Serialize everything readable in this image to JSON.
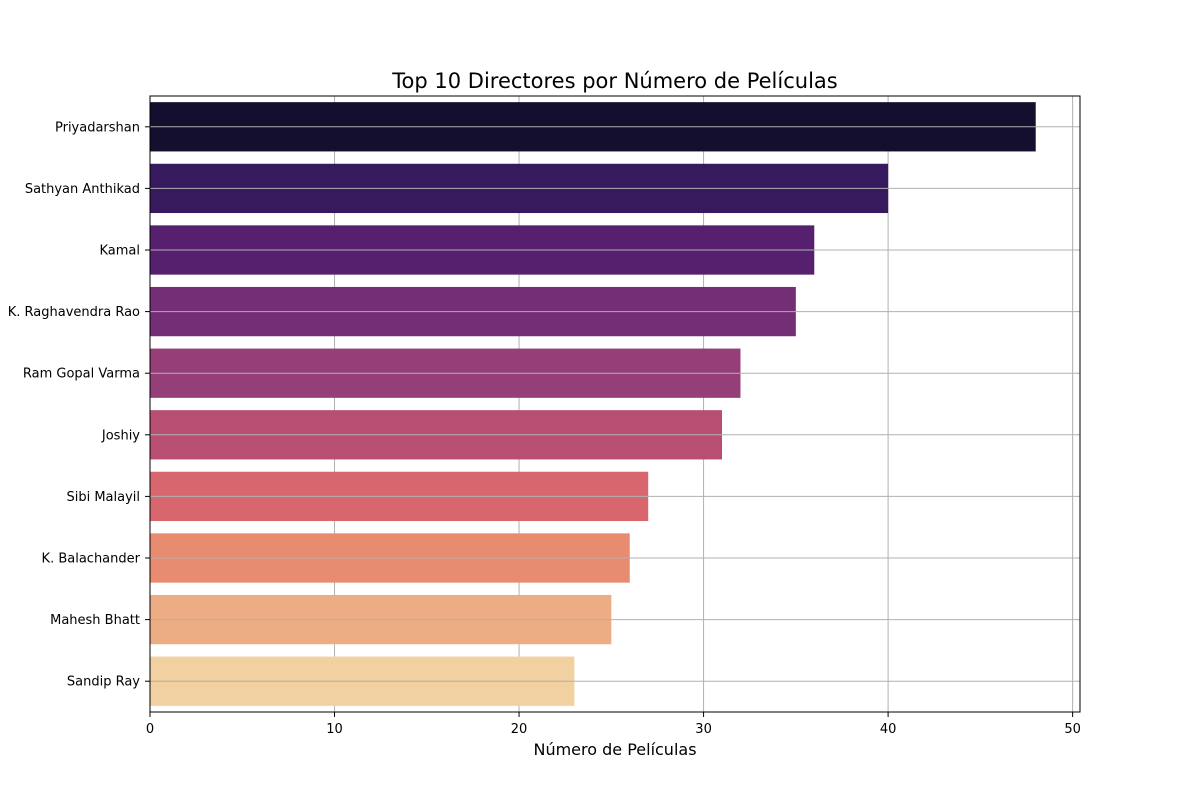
{
  "chart_data": {
    "type": "bar",
    "orientation": "horizontal",
    "title": "Top 10 Directores por Número de Películas",
    "xlabel": "Número de Películas",
    "ylabel": "",
    "categories": [
      "Priyadarshan",
      "Sathyan Anthikad",
      "Kamal",
      "K. Raghavendra Rao",
      "Ram Gopal Varma",
      "Joshiy",
      "Sibi Malayil",
      "K. Balachander",
      "Mahesh Bhatt",
      "Sandip Ray"
    ],
    "values": [
      48,
      40,
      36,
      35,
      32,
      31,
      27,
      26,
      25,
      23
    ],
    "xlim": [
      0,
      50.4
    ],
    "xticks": [
      0,
      10,
      20,
      30,
      40,
      50
    ],
    "grid": true,
    "legend": "none",
    "colormap": "magma",
    "bar_colors": [
      "#140f2e",
      "#371a5e",
      "#56206f",
      "#732e76",
      "#953e78",
      "#b84f73",
      "#d8666f",
      "#e78b71",
      "#ecad84",
      "#f1d1a1"
    ]
  }
}
